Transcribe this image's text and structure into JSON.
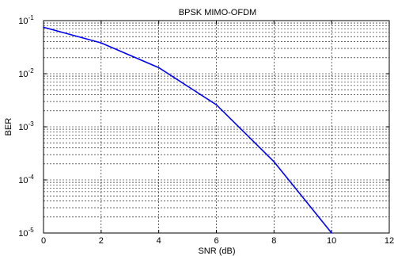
{
  "chart_data": {
    "type": "line",
    "title": "BPSK MIMO-OFDM",
    "xlabel": "SNR (dB)",
    "ylabel": "BER",
    "xlim": [
      0,
      12
    ],
    "ylim": [
      1e-05,
      0.1
    ],
    "yscale": "log",
    "grid": true,
    "x_ticks": [
      "0",
      "2",
      "4",
      "6",
      "8",
      "10",
      "12"
    ],
    "y_ticks": [
      {
        "base": "10",
        "exp": "-5"
      },
      {
        "base": "10",
        "exp": "-4"
      },
      {
        "base": "10",
        "exp": "-3"
      },
      {
        "base": "10",
        "exp": "-2"
      },
      {
        "base": "10",
        "exp": "-1"
      }
    ],
    "series": [
      {
        "color": "#0000ff",
        "x": [
          0,
          2,
          4,
          6,
          8,
          10
        ],
        "y": [
          0.075,
          0.038,
          0.013,
          0.0026,
          0.00022,
          1e-05
        ]
      }
    ]
  }
}
